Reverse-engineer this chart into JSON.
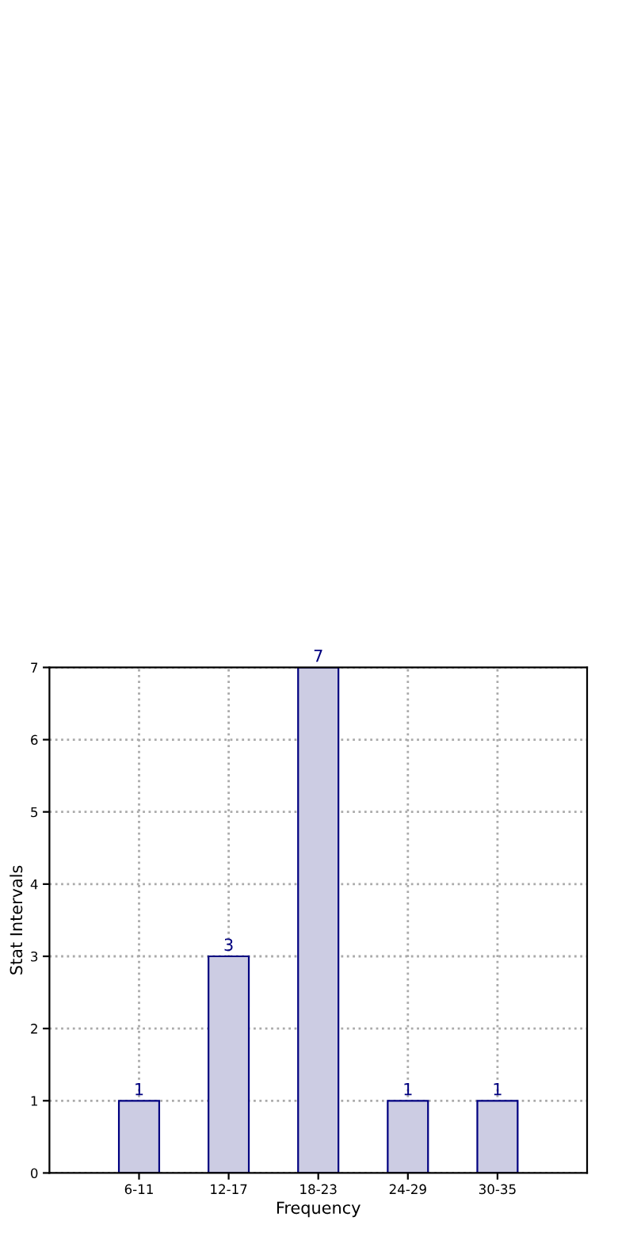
{
  "chart_data": {
    "type": "bar",
    "xlabel": "Frequency",
    "ylabel": "Stat Intervals",
    "categories": [
      "6-11",
      "12-17",
      "18-23",
      "24-29",
      "30-35"
    ],
    "values": [
      1,
      3,
      7,
      1,
      1
    ],
    "color": "#ccccE3",
    "ylim": [
      0,
      7
    ],
    "yticks": [
      0,
      1,
      2,
      3,
      4,
      5,
      6,
      7
    ],
    "grid": true,
    "data_labels": true
  }
}
